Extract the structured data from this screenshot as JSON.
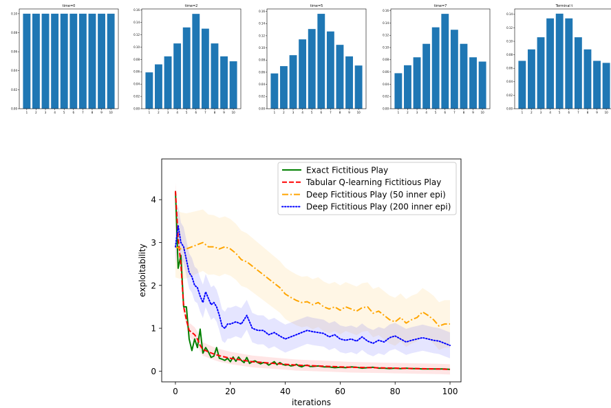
{
  "chart_data": [
    {
      "type": "bar",
      "title": "time=0",
      "categories": [
        "1",
        "2",
        "3",
        "4",
        "5",
        "6",
        "7",
        "8",
        "9",
        "10"
      ],
      "values": [
        0.1,
        0.1,
        0.1,
        0.1,
        0.1,
        0.1,
        0.1,
        0.1,
        0.1,
        0.1
      ],
      "ylim": [
        0,
        0.105
      ],
      "yticks": [
        "0.00",
        "0.02",
        "0.04",
        "0.06",
        "0.08",
        "0.10"
      ],
      "bar_color": "#1f77b4"
    },
    {
      "type": "bar",
      "title": "time=2",
      "categories": [
        "1",
        "2",
        "3",
        "4",
        "5",
        "6",
        "7",
        "8",
        "9",
        "10"
      ],
      "values": [
        0.059,
        0.072,
        0.085,
        0.106,
        0.132,
        0.154,
        0.13,
        0.106,
        0.085,
        0.077
      ],
      "ylim": [
        0,
        0.162
      ],
      "yticks": [
        "0.00",
        "0.02",
        "0.04",
        "0.06",
        "0.08",
        "0.10",
        "0.12",
        "0.14",
        "0.16"
      ],
      "bar_color": "#1f77b4"
    },
    {
      "type": "bar",
      "title": "time=5",
      "categories": [
        "1",
        "2",
        "3",
        "4",
        "5",
        "6",
        "7",
        "8",
        "9",
        "10"
      ],
      "values": [
        0.058,
        0.07,
        0.088,
        0.114,
        0.131,
        0.156,
        0.127,
        0.105,
        0.086,
        0.071
      ],
      "ylim": [
        0,
        0.164
      ],
      "yticks": [
        "0.00",
        "0.02",
        "0.04",
        "0.06",
        "0.08",
        "0.10",
        "0.12",
        "0.14",
        "0.16"
      ],
      "bar_color": "#1f77b4"
    },
    {
      "type": "bar",
      "title": "time=7",
      "categories": [
        "1",
        "2",
        "3",
        "4",
        "5",
        "6",
        "7",
        "8",
        "9",
        "10"
      ],
      "values": [
        0.058,
        0.071,
        0.084,
        0.106,
        0.133,
        0.155,
        0.129,
        0.106,
        0.084,
        0.077
      ],
      "ylim": [
        0,
        0.163
      ],
      "yticks": [
        "0.00",
        "0.02",
        "0.04",
        "0.06",
        "0.08",
        "0.10",
        "0.12",
        "0.14",
        "0.16"
      ],
      "bar_color": "#1f77b4"
    },
    {
      "type": "bar",
      "title": "Terminal t",
      "categories": [
        "1",
        "2",
        "3",
        "4",
        "5",
        "6",
        "7",
        "8",
        "9",
        "10"
      ],
      "values": [
        0.071,
        0.088,
        0.106,
        0.134,
        0.141,
        0.134,
        0.106,
        0.088,
        0.071,
        0.068
      ],
      "ylim": [
        0,
        0.148
      ],
      "yticks": [
        "0.00",
        "0.02",
        "0.04",
        "0.06",
        "0.08",
        "0.10",
        "0.12",
        "0.14"
      ],
      "bar_color": "#1f77b4"
    },
    {
      "type": "line",
      "xlabel": "iterations",
      "ylabel": "exploitability",
      "xlim": [
        -5,
        104
      ],
      "ylim": [
        -0.25,
        4.95
      ],
      "xticks": [
        "0",
        "20",
        "40",
        "60",
        "80",
        "100"
      ],
      "yticks": [
        "0",
        "1",
        "2",
        "3",
        "4"
      ],
      "legend_position": "top-right",
      "series": [
        {
          "name": "Exact Fictitious Play",
          "color": "#008000",
          "style": "solid",
          "x": [
            0,
            1,
            2,
            3,
            4,
            5,
            6,
            7,
            8,
            9,
            10,
            11,
            12,
            13,
            14,
            15,
            16,
            17,
            18,
            19,
            20,
            21,
            22,
            23,
            24,
            25,
            26,
            27,
            28,
            29,
            30,
            31,
            32,
            33,
            34,
            35,
            36,
            37,
            38,
            39,
            40,
            41,
            42,
            43,
            44,
            45,
            46,
            47,
            48,
            49,
            50,
            52,
            54,
            56,
            58,
            60,
            62,
            64,
            66,
            68,
            70,
            72,
            74,
            76,
            78,
            80,
            82,
            84,
            86,
            88,
            90,
            92,
            94,
            96,
            98,
            100
          ],
          "y": [
            4.2,
            2.4,
            2.7,
            1.5,
            1.5,
            0.75,
            0.48,
            0.75,
            0.55,
            0.98,
            0.42,
            0.55,
            0.45,
            0.32,
            0.35,
            0.55,
            0.3,
            0.28,
            0.25,
            0.3,
            0.22,
            0.33,
            0.23,
            0.33,
            0.25,
            0.2,
            0.32,
            0.18,
            0.22,
            0.24,
            0.2,
            0.17,
            0.2,
            0.19,
            0.14,
            0.18,
            0.22,
            0.15,
            0.2,
            0.16,
            0.14,
            0.15,
            0.12,
            0.13,
            0.16,
            0.12,
            0.1,
            0.13,
            0.14,
            0.11,
            0.11,
            0.12,
            0.1,
            0.1,
            0.08,
            0.09,
            0.08,
            0.1,
            0.09,
            0.07,
            0.08,
            0.09,
            0.07,
            0.07,
            0.06,
            0.07,
            0.06,
            0.07,
            0.06,
            0.06,
            0.05,
            0.05,
            0.05,
            0.05,
            0.05,
            0.04
          ],
          "band": 0.0
        },
        {
          "name": "Tabular Q-learning Fictitious Play",
          "color": "#ff0000",
          "style": "dashed",
          "x": [
            0,
            1,
            2,
            3,
            4,
            5,
            6,
            7,
            8,
            9,
            10,
            11,
            12,
            14,
            16,
            18,
            20,
            22,
            24,
            26,
            28,
            30,
            32,
            34,
            36,
            38,
            40,
            44,
            48,
            52,
            56,
            60,
            64,
            68,
            72,
            76,
            80,
            84,
            88,
            92,
            96,
            100
          ],
          "y": [
            4.2,
            3.1,
            2.5,
            1.5,
            1.2,
            0.95,
            0.9,
            0.85,
            0.75,
            0.6,
            0.5,
            0.48,
            0.45,
            0.4,
            0.36,
            0.33,
            0.3,
            0.28,
            0.26,
            0.24,
            0.22,
            0.21,
            0.2,
            0.19,
            0.18,
            0.17,
            0.16,
            0.14,
            0.13,
            0.12,
            0.11,
            0.1,
            0.09,
            0.085,
            0.08,
            0.075,
            0.07,
            0.065,
            0.06,
            0.055,
            0.05,
            0.04
          ],
          "band": 0.12
        },
        {
          "name": "Deep Fictitious Play (50 inner epi)",
          "color": "#ffa500",
          "style": "dashdot",
          "x": [
            0,
            2,
            4,
            6,
            8,
            10,
            12,
            14,
            16,
            18,
            20,
            22,
            24,
            26,
            28,
            30,
            32,
            34,
            36,
            38,
            40,
            42,
            44,
            46,
            48,
            50,
            52,
            54,
            56,
            58,
            60,
            62,
            64,
            66,
            68,
            70,
            72,
            74,
            76,
            78,
            80,
            82,
            84,
            86,
            88,
            90,
            92,
            94,
            96,
            98,
            100
          ],
          "y": [
            2.9,
            2.85,
            2.85,
            2.9,
            2.95,
            3.0,
            2.9,
            2.9,
            2.85,
            2.9,
            2.85,
            2.75,
            2.6,
            2.55,
            2.45,
            2.35,
            2.25,
            2.15,
            2.05,
            1.95,
            1.8,
            1.72,
            1.65,
            1.6,
            1.62,
            1.55,
            1.6,
            1.5,
            1.45,
            1.5,
            1.42,
            1.5,
            1.45,
            1.4,
            1.48,
            1.5,
            1.35,
            1.4,
            1.3,
            1.2,
            1.15,
            1.25,
            1.12,
            1.2,
            1.25,
            1.38,
            1.3,
            1.2,
            1.05,
            1.1,
            1.1
          ],
          "band": 0.55
        },
        {
          "name": "Deep Fictitious Play (200 inner epi)",
          "color": "#0000ff",
          "style": "dotted",
          "x": [
            0,
            1,
            2,
            3,
            4,
            5,
            6,
            7,
            8,
            9,
            10,
            11,
            12,
            13,
            14,
            15,
            16,
            17,
            18,
            19,
            20,
            22,
            24,
            26,
            28,
            30,
            32,
            34,
            36,
            38,
            40,
            42,
            44,
            46,
            48,
            50,
            52,
            54,
            56,
            58,
            60,
            62,
            64,
            66,
            68,
            70,
            72,
            74,
            76,
            78,
            80,
            82,
            84,
            86,
            88,
            90,
            92,
            94,
            96,
            98,
            100
          ],
          "y": [
            2.9,
            3.4,
            3.0,
            2.9,
            2.6,
            2.3,
            2.2,
            2.0,
            1.95,
            1.75,
            1.6,
            1.85,
            1.7,
            1.55,
            1.6,
            1.5,
            1.3,
            1.05,
            1.0,
            1.1,
            1.1,
            1.15,
            1.1,
            1.3,
            1.0,
            0.95,
            0.95,
            0.85,
            0.9,
            0.82,
            0.75,
            0.8,
            0.85,
            0.9,
            0.95,
            0.92,
            0.9,
            0.88,
            0.8,
            0.85,
            0.75,
            0.72,
            0.75,
            0.7,
            0.8,
            0.7,
            0.65,
            0.72,
            0.68,
            0.78,
            0.82,
            0.75,
            0.68,
            0.72,
            0.75,
            0.78,
            0.75,
            0.72,
            0.7,
            0.65,
            0.6
          ],
          "band": 0.3
        }
      ]
    }
  ]
}
